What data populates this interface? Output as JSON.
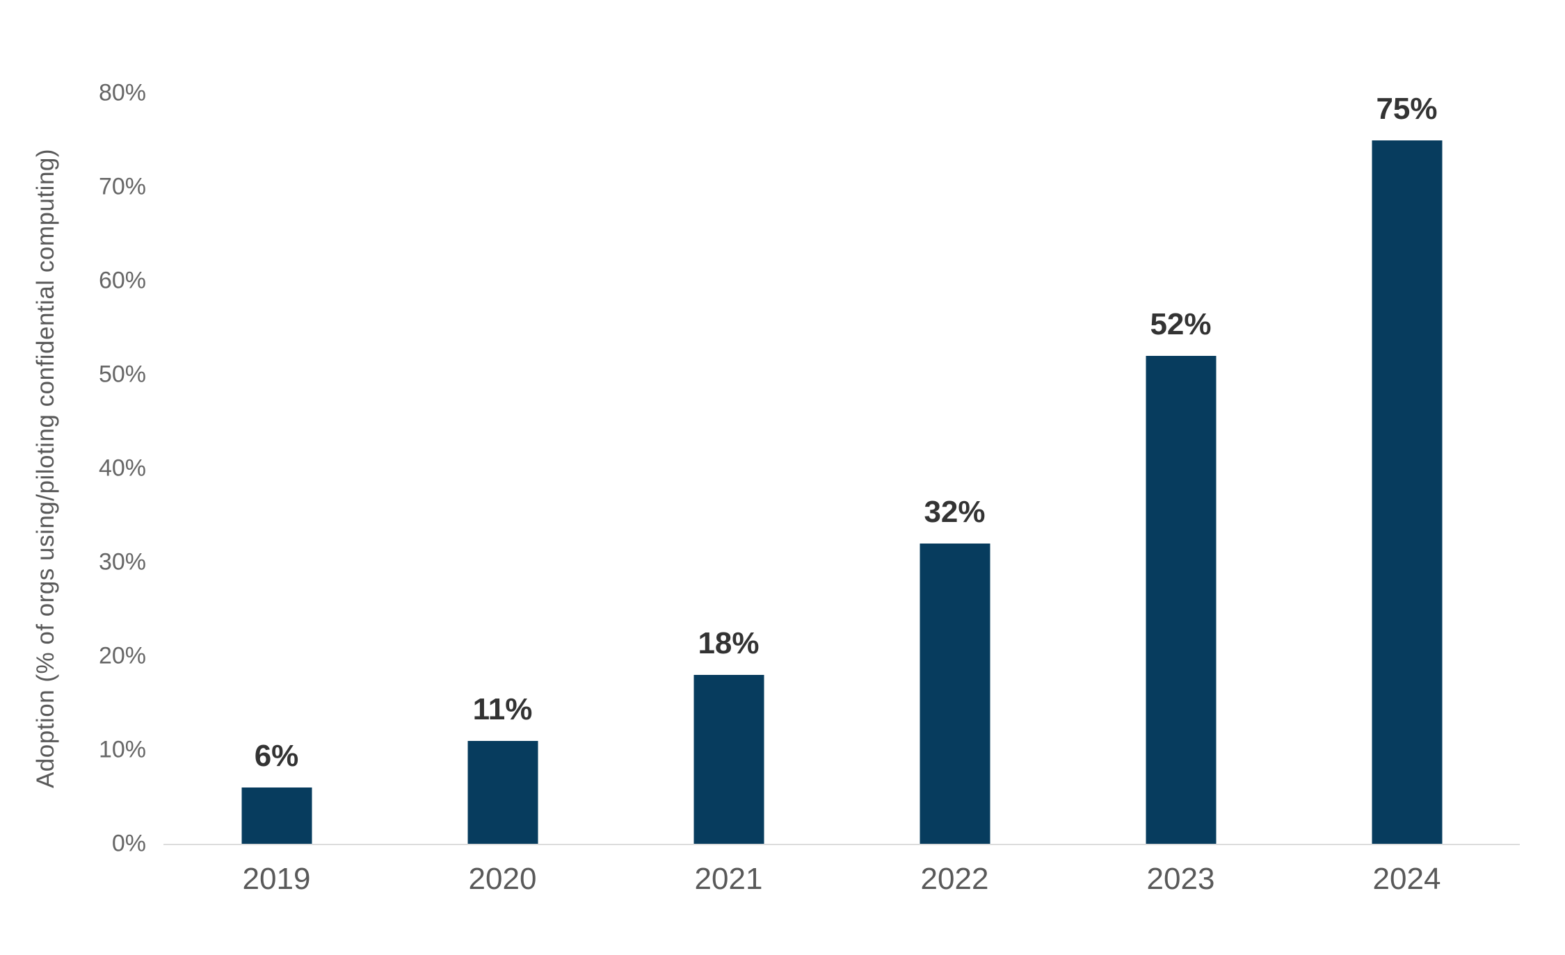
{
  "chart_data": {
    "type": "bar",
    "title": "",
    "xlabel": "",
    "ylabel": "Adoption (% of orgs using/piloting confidential computing)",
    "categories": [
      "2019",
      "2020",
      "2021",
      "2022",
      "2023",
      "2024"
    ],
    "values": [
      6,
      11,
      18,
      32,
      52,
      75
    ],
    "value_labels": [
      "6%",
      "11%",
      "18%",
      "32%",
      "52%",
      "75%"
    ],
    "ylim": [
      0,
      80
    ],
    "yticks": [
      0,
      10,
      20,
      30,
      40,
      50,
      60,
      70,
      80
    ],
    "ytick_labels": [
      "0%",
      "10%",
      "20%",
      "30%",
      "40%",
      "50%",
      "60%",
      "70%",
      "80%"
    ],
    "grid": false,
    "legend": false,
    "colors": {
      "bar": "#073c5e",
      "value_label": "#333333",
      "axis_text": "#666666",
      "axis_title": "#595959",
      "axis_line": "#dcdcdc",
      "background": "#ffffff"
    }
  }
}
